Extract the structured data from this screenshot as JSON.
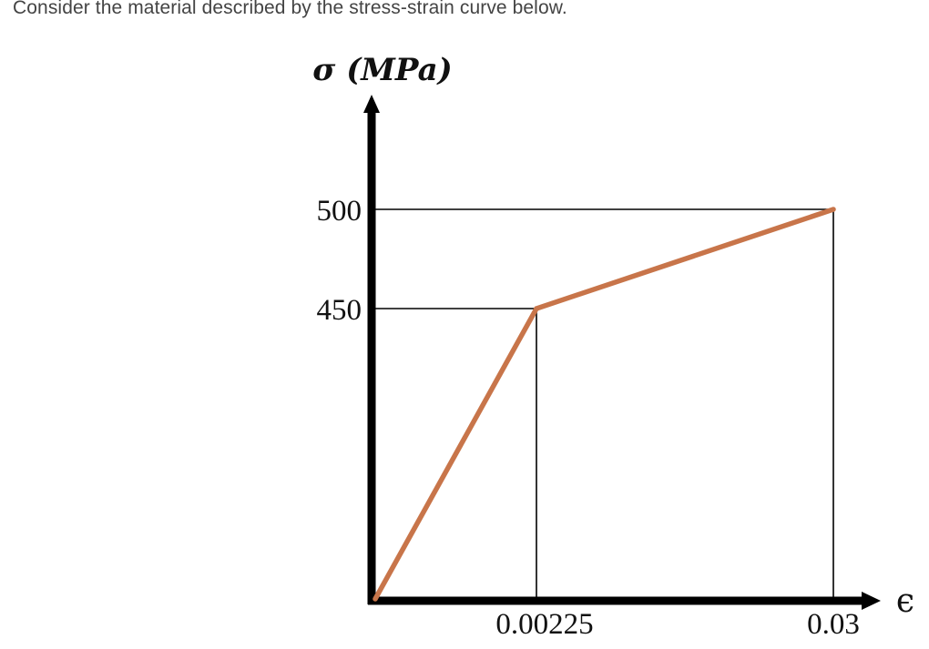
{
  "prompt_text": "Consider the material described by the stress-strain curve below.",
  "chart_data": {
    "type": "line",
    "ylabel": "σ (MPa)",
    "xlabel": "ϵ",
    "x": [
      0,
      0.00225,
      0.03
    ],
    "y": [
      0,
      450,
      500
    ],
    "x_ticks": [
      "0.00225",
      "0.03"
    ],
    "y_ticks": [
      "500",
      "450"
    ],
    "guide_lines": true,
    "grid": false,
    "colors": {
      "curve": "#C8754A",
      "axes": "#000000",
      "guides": "#000000"
    }
  }
}
